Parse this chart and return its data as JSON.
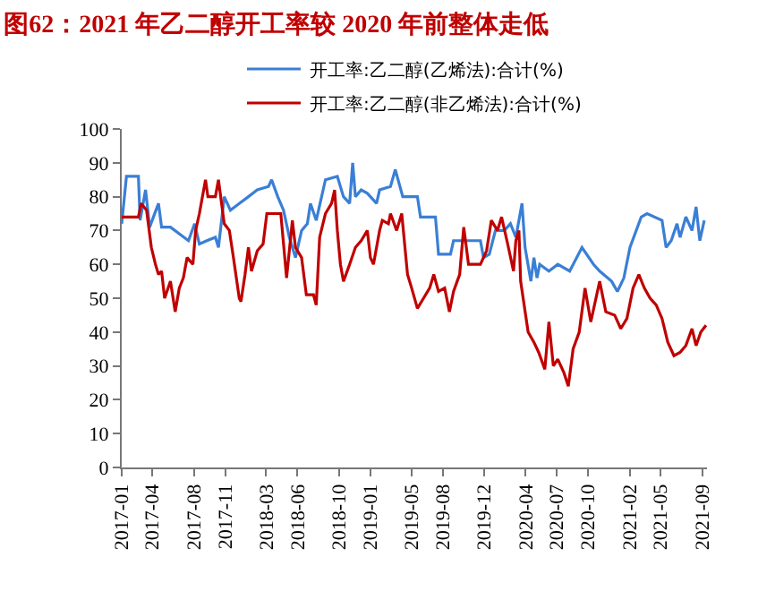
{
  "chart_data": {
    "type": "line",
    "title": "图62：2021 年乙二醇开工率较 2020 年前整体走低",
    "xlim": [
      "2017-01-01",
      "2021-09-15"
    ],
    "xticks": [
      "2017-01",
      "2017-04",
      "2017-08",
      "2017-11",
      "2018-03",
      "2018-06",
      "2018-10",
      "2019-01",
      "2019-05",
      "2019-08",
      "2019-12",
      "2020-04",
      "2020-07",
      "2020-10",
      "2021-02",
      "2021-05",
      "2021-09"
    ],
    "ylim": [
      0,
      100
    ],
    "yticks": [
      0,
      10,
      20,
      30,
      40,
      50,
      60,
      70,
      80,
      90,
      100
    ],
    "grid": false,
    "legend": "top",
    "line_style": "solid",
    "series": [
      {
        "name": "开工率:乙二醇(乙烯法):合计(%)",
        "color": "#3a7fd5",
        "x": [
          "2017-01-01",
          "2017-01-15",
          "2017-02-19",
          "2017-02-24",
          "2017-03-12",
          "2017-03-24",
          "2017-04-19",
          "2017-04-28",
          "2017-05-24",
          "2017-07-16",
          "2017-08-03",
          "2017-08-17",
          "2017-09-08",
          "2017-10-03",
          "2017-10-12",
          "2017-10-29",
          "2017-11-16",
          "2017-12-12",
          "2018-01-08",
          "2018-02-03",
          "2018-03-08",
          "2018-03-17",
          "2018-04-04",
          "2018-04-21",
          "2018-05-08",
          "2018-05-26",
          "2018-06-13",
          "2018-06-30",
          "2018-07-09",
          "2018-07-26",
          "2018-08-22",
          "2018-09-26",
          "2018-10-14",
          "2018-11-01",
          "2018-11-10",
          "2018-11-18",
          "2018-12-05",
          "2018-12-23",
          "2019-01-19",
          "2019-01-28",
          "2019-03-01",
          "2019-03-15",
          "2019-04-06",
          "2019-05-19",
          "2019-05-28",
          "2019-07-11",
          "2019-07-20",
          "2019-08-24",
          "2019-09-02",
          "2019-11-20",
          "2019-11-29",
          "2019-12-16",
          "2020-01-03",
          "2020-01-29",
          "2020-02-16",
          "2020-03-03",
          "2020-03-21",
          "2020-03-30",
          "2020-04-16",
          "2020-04-25",
          "2020-05-04",
          "2020-05-12",
          "2020-06-08",
          "2020-07-04",
          "2020-08-08",
          "2020-09-13",
          "2020-10-17",
          "2020-11-04",
          "2020-12-09",
          "2020-12-26",
          "2021-01-14",
          "2021-02-01",
          "2021-03-06",
          "2021-03-23",
          "2021-05-06",
          "2021-05-18",
          "2021-06-02",
          "2021-06-19",
          "2021-06-28",
          "2021-07-15",
          "2021-08-02",
          "2021-08-14",
          "2021-08-25",
          "2021-09-07"
        ],
        "values": [
          72,
          86,
          86,
          73,
          82,
          71,
          78,
          71,
          71,
          67,
          72,
          66,
          67,
          68,
          65,
          80,
          76,
          78,
          80,
          82,
          83,
          85,
          80,
          76,
          68,
          62,
          70,
          72,
          78,
          73,
          85,
          86,
          80,
          78,
          90,
          80,
          82,
          81,
          78,
          82,
          83,
          88,
          80,
          80,
          74,
          74,
          63,
          63,
          67,
          67,
          62,
          63,
          70,
          70,
          72,
          68,
          78,
          65,
          55,
          62,
          56,
          60,
          58,
          60,
          58,
          65,
          60,
          58,
          55,
          52,
          56,
          65,
          74,
          75,
          73,
          65,
          67,
          72,
          68,
          74,
          70,
          77,
          67,
          73
        ]
      },
      {
        "name": "开工率:乙二醇(非乙烯法):合计(%)",
        "color": "#c00000",
        "x": [
          "2017-01-01",
          "2017-02-19",
          "2017-02-27",
          "2017-03-15",
          "2017-03-29",
          "2017-04-10",
          "2017-04-19",
          "2017-04-28",
          "2017-05-07",
          "2017-05-24",
          "2017-06-07",
          "2017-06-19",
          "2017-07-01",
          "2017-07-12",
          "2017-07-29",
          "2017-08-06",
          "2017-08-17",
          "2017-09-04",
          "2017-09-11",
          "2017-10-03",
          "2017-10-12",
          "2017-10-29",
          "2017-11-13",
          "2017-11-25",
          "2017-12-12",
          "2017-12-17",
          "2017-12-29",
          "2018-01-08",
          "2018-01-17",
          "2018-02-03",
          "2018-02-20",
          "2018-03-03",
          "2018-04-13",
          "2018-04-30",
          "2018-05-17",
          "2018-05-26",
          "2018-06-13",
          "2018-06-27",
          "2018-07-18",
          "2018-07-26",
          "2018-08-05",
          "2018-08-22",
          "2018-09-09",
          "2018-09-18",
          "2018-09-26",
          "2018-10-05",
          "2018-10-14",
          "2018-11-01",
          "2018-11-18",
          "2018-12-05",
          "2018-12-23",
          "2019-01-01",
          "2019-01-10",
          "2019-01-28",
          "2019-02-05",
          "2019-02-23",
          "2019-03-01",
          "2019-03-19",
          "2019-04-03",
          "2019-04-20",
          "2019-05-02",
          "2019-05-19",
          "2019-06-06",
          "2019-06-24",
          "2019-07-06",
          "2019-07-20",
          "2019-08-07",
          "2019-08-21",
          "2019-09-02",
          "2019-09-20",
          "2019-10-02",
          "2019-10-16",
          "2019-11-03",
          "2019-11-20",
          "2019-12-08",
          "2019-12-22",
          "2020-01-09",
          "2020-01-21",
          "2020-02-08",
          "2020-02-25",
          "2020-03-03",
          "2020-03-12",
          "2020-03-17",
          "2020-04-08",
          "2020-04-25",
          "2020-05-09",
          "2020-05-27",
          "2020-06-08",
          "2020-06-21",
          "2020-07-04",
          "2020-07-22",
          "2020-08-04",
          "2020-08-18",
          "2020-09-05",
          "2020-09-22",
          "2020-10-09",
          "2020-11-04",
          "2020-11-22",
          "2020-12-18",
          "2021-01-05",
          "2021-01-23",
          "2021-02-10",
          "2021-02-27",
          "2021-03-15",
          "2021-04-01",
          "2021-04-19",
          "2021-05-06",
          "2021-05-23",
          "2021-06-10",
          "2021-06-28",
          "2021-07-15",
          "2021-08-02",
          "2021-08-14",
          "2021-08-28",
          "2021-09-12"
        ],
        "values": [
          74,
          74,
          78,
          76,
          65,
          60,
          57,
          58,
          50,
          55,
          46,
          53,
          56,
          62,
          60,
          70,
          75,
          85,
          80,
          80,
          85,
          72,
          70,
          62,
          50,
          49,
          57,
          65,
          58,
          64,
          66,
          75,
          75,
          56,
          73,
          65,
          62,
          51,
          51,
          48,
          68,
          75,
          78,
          82,
          70,
          60,
          55,
          60,
          65,
          67,
          70,
          62,
          60,
          70,
          73,
          72,
          75,
          70,
          75,
          57,
          53,
          47,
          50,
          53,
          57,
          52,
          53,
          46,
          52,
          57,
          71,
          60,
          60,
          60,
          64,
          73,
          70,
          74,
          66,
          58,
          67,
          70,
          55,
          40,
          37,
          34,
          29,
          43,
          30,
          32,
          28,
          24,
          35,
          40,
          53,
          43,
          55,
          46,
          45,
          41,
          44,
          53,
          57,
          53,
          50,
          48,
          44,
          37,
          33,
          34,
          36,
          41,
          36,
          40,
          42
        ]
      }
    ]
  }
}
